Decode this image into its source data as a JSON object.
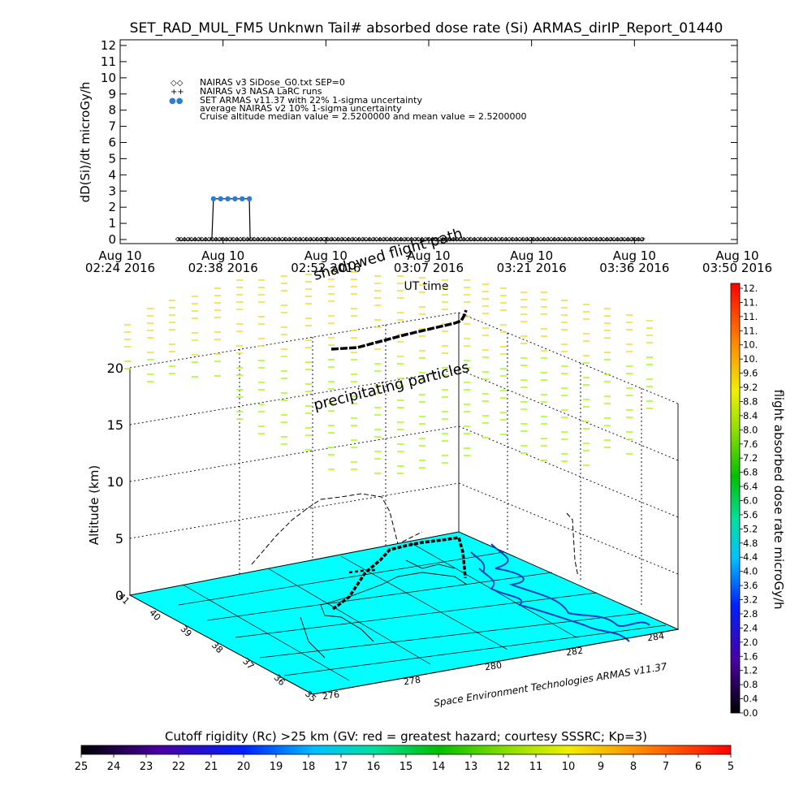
{
  "chart_data": [
    {
      "type": "scatter",
      "title": "SET_RAD_MUL_FM5 Unknwn Tail#  absorbed dose rate (Si) ARMAS_dirIP_Report_01440",
      "xlabel": "UT time",
      "ylabel": "dD(Si)/dt microGy/h",
      "ylim": [
        0,
        12
      ],
      "yticks": [
        "0",
        "1",
        "2",
        "3",
        "4",
        "5",
        "6",
        "7",
        "8",
        "9",
        "10",
        "11",
        "12"
      ],
      "xticks": [
        {
          "date": "Aug 10",
          "time": "02:24 2016"
        },
        {
          "date": "Aug 10",
          "time": "02:38 2016"
        },
        {
          "date": "Aug 10",
          "time": "02:52 2016"
        },
        {
          "date": "Aug 10",
          "time": "03:07 2016"
        },
        {
          "date": "Aug 10",
          "time": "03:21 2016"
        },
        {
          "date": "Aug 10",
          "time": "03:36 2016"
        },
        {
          "date": "Aug 10",
          "time": "03:50 2016"
        }
      ],
      "legend": [
        {
          "symbol": "◇◇",
          "label": "NAIRAS v3 SiDose_G0.txt SEP=0"
        },
        {
          "symbol": "++",
          "label": "NAIRAS v3 NASA LaRC runs"
        },
        {
          "symbol": "●●",
          "label": "SET ARMAS v11.37 with 22% 1-sigma uncertainty"
        },
        {
          "symbol": "",
          "label": "average NAIRAS v2 10% 1-sigma uncertainty"
        },
        {
          "symbol": "",
          "label": "Cruise altitude median value = 2.5200000 and mean value = 2.5200000"
        }
      ],
      "series": [
        {
          "name": "SET ARMAS v11.37 with 22% 1-sigma uncertainty",
          "color": "#2a7fd4",
          "x": [
            "02:37",
            "02:38",
            "02:39",
            "02:40",
            "02:41",
            "02:42"
          ],
          "y": [
            2.52,
            2.52,
            2.52,
            2.52,
            2.52,
            2.52
          ]
        },
        {
          "name": "NAIRAS v3 SiDose_G0.txt SEP=0",
          "color": "#000000",
          "x_start": "02:32",
          "x_end": "03:37",
          "y": 0.02
        },
        {
          "name": "NAIRAS v3 NASA LaRC runs",
          "color": "#000000",
          "x_start": "02:32",
          "x_end": "03:37",
          "y": 0.05
        }
      ]
    },
    {
      "type": "scatter",
      "zlabel": "Altitude (km)",
      "zticks": [
        "0",
        "5",
        "10",
        "15",
        "20"
      ],
      "lat_ticks": [
        "41",
        "40",
        "39",
        "38",
        "37",
        "36",
        "35"
      ],
      "lon_ticks": [
        "276",
        "278",
        "280",
        "282",
        "284"
      ],
      "annotations": [
        "precipitating particles",
        "shadowed flight path"
      ],
      "credit": "Space Environment Technologies ARMAS v11.37",
      "colorbar": {
        "label": "flight absorbed dose rate microGy/h",
        "ticks": [
          "0.0",
          "0.4",
          "0.8",
          "1.2",
          "1.6",
          "2.0",
          "2.4",
          "2.8",
          "3.2",
          "3.6",
          "4.0",
          "4.4",
          "4.8",
          "5.2",
          "5.6",
          "6.0",
          "6.4",
          "6.8",
          "7.2",
          "7.6",
          "8.0",
          "8.4",
          "8.8",
          "9.2",
          "9.6",
          "10.",
          "10.",
          "11.",
          "11.",
          "11.",
          "12."
        ]
      },
      "surface_color": "#00ffff",
      "particle_color": "#aaff22"
    },
    {
      "type": "heatmap",
      "title": "Cutoff rigidity (Rc) >25 km (GV: red = greatest hazard; courtesy SSSRC; Kp=3)",
      "ticks": [
        "25",
        "24",
        "23",
        "22",
        "21",
        "20",
        "19",
        "18",
        "17",
        "16",
        "15",
        "14",
        "13",
        "12",
        "11",
        "10",
        "9",
        "8",
        "7",
        "6",
        "5"
      ]
    }
  ]
}
